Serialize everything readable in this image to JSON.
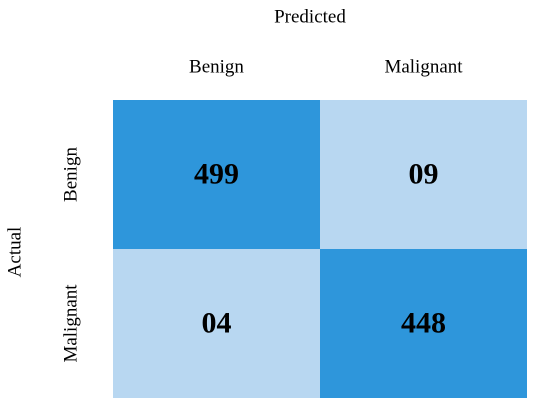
{
  "chart_data": {
    "type": "heatmap",
    "x_label": "Predicted",
    "y_label": "Actual",
    "x_categories": [
      "Benign",
      "Malignant"
    ],
    "y_categories": [
      "Benign",
      "Malignant"
    ],
    "values": [
      [
        499,
        9
      ],
      [
        4,
        448
      ]
    ],
    "value_labels": [
      [
        "499",
        "09"
      ],
      [
        "04",
        "448"
      ]
    ],
    "colors": [
      [
        "#2e96db",
        "#b8d7f1"
      ],
      [
        "#b8d7f1",
        "#2e96db"
      ]
    ]
  }
}
